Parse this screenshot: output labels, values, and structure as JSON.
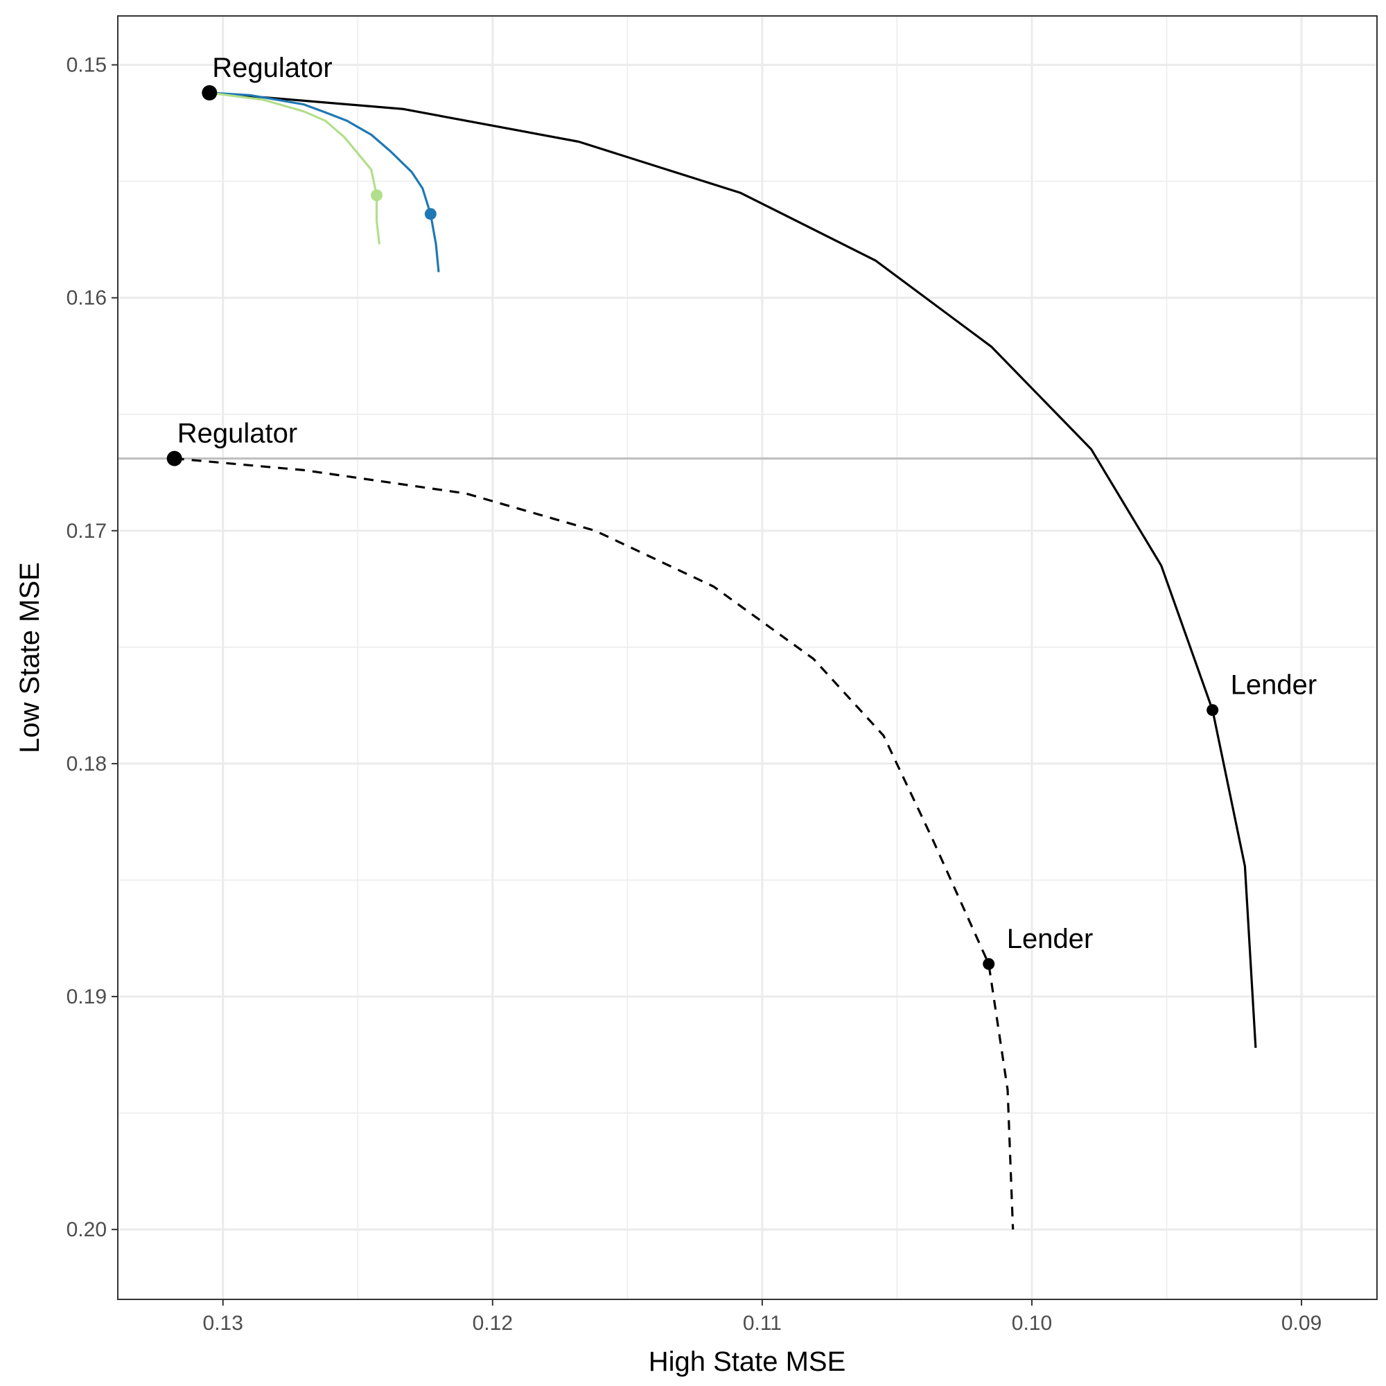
{
  "chart_data": {
    "type": "line",
    "xlabel": "High State MSE",
    "ylabel": "Low State MSE",
    "x_reversed": true,
    "y_reversed": true,
    "xlim": [
      0.1339,
      0.0872
    ],
    "ylim": [
      0.1479,
      0.203
    ],
    "x_ticks": [
      0.13,
      0.12,
      0.11,
      0.1,
      0.09
    ],
    "x_tick_labels": [
      "0.13",
      "0.12",
      "0.11",
      "0.10",
      "0.09"
    ],
    "y_ticks": [
      0.15,
      0.16,
      0.17,
      0.18,
      0.19,
      0.2
    ],
    "y_tick_labels": [
      "0.15",
      "0.16",
      "0.17",
      "0.18",
      "0.19",
      "0.20"
    ],
    "grid": true,
    "legend": "none",
    "reference_line": {
      "y": 0.1669,
      "color": "#bdbdbd"
    },
    "series": [
      {
        "style": "solid",
        "color": "#000000",
        "points": [
          [
            0.1305,
            0.1512
          ],
          [
            0.1233,
            0.1519
          ],
          [
            0.1168,
            0.1533
          ],
          [
            0.1108,
            0.1555
          ],
          [
            0.1058,
            0.1584
          ],
          [
            0.1015,
            0.1621
          ],
          [
            0.0978,
            0.1665
          ],
          [
            0.0952,
            0.1715
          ],
          [
            0.0933,
            0.1777
          ],
          [
            0.0921,
            0.1844
          ],
          [
            0.0917,
            0.1922
          ]
        ]
      },
      {
        "style": "dashed",
        "color": "#000000",
        "points": [
          [
            0.1318,
            0.1669
          ],
          [
            0.127,
            0.1674
          ],
          [
            0.121,
            0.1684
          ],
          [
            0.1162,
            0.17
          ],
          [
            0.1118,
            0.1724
          ],
          [
            0.1081,
            0.1755
          ],
          [
            0.1055,
            0.1788
          ],
          [
            0.1037,
            0.1832
          ],
          [
            0.1016,
            0.1886
          ],
          [
            0.1009,
            0.194
          ],
          [
            0.1007,
            0.2
          ]
        ]
      },
      {
        "style": "solid",
        "color": "#1f78b4",
        "points": [
          [
            0.1305,
            0.1512
          ],
          [
            0.129,
            0.1513
          ],
          [
            0.127,
            0.1517
          ],
          [
            0.1263,
            0.152
          ],
          [
            0.1254,
            0.1524
          ],
          [
            0.1245,
            0.153
          ],
          [
            0.1238,
            0.1537
          ],
          [
            0.123,
            0.1546
          ],
          [
            0.1226,
            0.1553
          ],
          [
            0.1223,
            0.1564
          ],
          [
            0.1221,
            0.1577
          ],
          [
            0.122,
            0.1589
          ]
        ]
      },
      {
        "style": "solid",
        "color": "#b2df8a",
        "points": [
          [
            0.1305,
            0.1512
          ],
          [
            0.1285,
            0.1515
          ],
          [
            0.127,
            0.152
          ],
          [
            0.1262,
            0.1524
          ],
          [
            0.1255,
            0.1531
          ],
          [
            0.125,
            0.1538
          ],
          [
            0.1245,
            0.1545
          ],
          [
            0.1243,
            0.1556
          ],
          [
            0.1243,
            0.1567
          ],
          [
            0.1242,
            0.1577
          ]
        ]
      }
    ],
    "markers": [
      {
        "x": 0.1305,
        "y": 0.1512,
        "color": "#000000",
        "label": "Regulator"
      },
      {
        "x": 0.1318,
        "y": 0.1669,
        "color": "#000000",
        "label": "Regulator"
      },
      {
        "x": 0.0933,
        "y": 0.1777,
        "color": "#000000",
        "label": "Lender"
      },
      {
        "x": 0.1016,
        "y": 0.1886,
        "color": "#000000",
        "label": "Lender"
      },
      {
        "x": 0.1223,
        "y": 0.1564,
        "color": "#1f78b4",
        "label": ""
      },
      {
        "x": 0.1243,
        "y": 0.1556,
        "color": "#b2df8a",
        "label": ""
      }
    ]
  }
}
